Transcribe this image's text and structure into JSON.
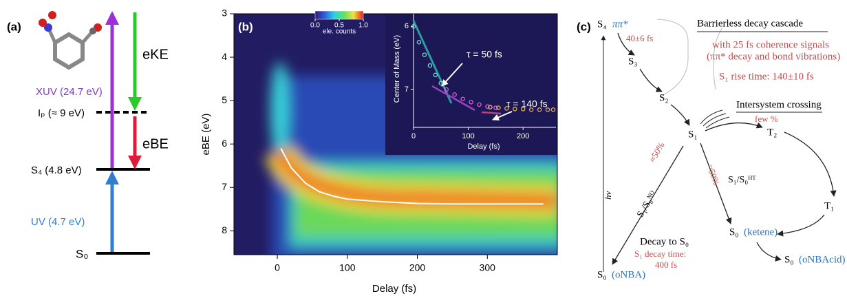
{
  "panel_a": {
    "label": "(a)",
    "s0": "S₀",
    "s4": "S₄ (4.8 eV)",
    "ip": "Iₚ (≈ 9 eV)",
    "xuv": "XUV (24.7 eV)",
    "uv": "UV (4.7 eV)",
    "eke": "eKE",
    "ebe": "eBE"
  },
  "chart_data": {
    "type": "heatmap",
    "panel_label": "(b)",
    "xlabel": "Delay (fs)",
    "ylabel": "eBE (eV)",
    "xlim": [
      -62,
      400
    ],
    "ylim": [
      8.55,
      3
    ],
    "xticks": [
      0,
      100,
      200,
      300
    ],
    "yticks": [
      3,
      4,
      5,
      6,
      7,
      8
    ],
    "mean_curve": {
      "color": "#ffffff",
      "x": [
        5,
        20,
        40,
        60,
        80,
        100,
        150,
        200,
        250,
        300,
        380
      ],
      "y": [
        6.1,
        6.55,
        6.9,
        7.1,
        7.2,
        7.27,
        7.33,
        7.37,
        7.38,
        7.38,
        7.38
      ]
    },
    "colorbar": {
      "label": "ele. counts",
      "lim": [
        0,
        1
      ],
      "ticks": [
        {
          "value": 0,
          "label": "0.0"
        },
        {
          "value": 0.5,
          "label": "0.5"
        },
        {
          "value": 1,
          "label": "1.0"
        }
      ]
    },
    "inset": {
      "type": "scatter",
      "xlabel": "Delay (fs)",
      "ylabel": "Center of Mass (eV)",
      "xlim": [
        0,
        260
      ],
      "ylim": [
        7.6,
        5.8
      ],
      "xticks": [
        0,
        100,
        200
      ],
      "yticks": [
        6,
        7
      ],
      "series": [
        {
          "color": "#7fd4d4",
          "x": [
            0,
            10,
            20,
            30,
            40,
            50
          ],
          "y": [
            6.0,
            6.25,
            6.45,
            6.62,
            6.77,
            6.9
          ]
        },
        {
          "color": "#e060e0",
          "x": [
            60,
            75,
            90,
            105,
            120,
            135,
            150
          ],
          "y": [
            7.0,
            7.08,
            7.15,
            7.2,
            7.24,
            7.27,
            7.29
          ]
        },
        {
          "color": "#e8b060",
          "x": [
            140,
            155,
            170,
            185,
            200,
            215,
            230,
            245,
            255
          ],
          "y": [
            7.28,
            7.29,
            7.3,
            7.31,
            7.31,
            7.32,
            7.32,
            7.32,
            7.32
          ]
        }
      ],
      "annotations": [
        "τ = 50 fs",
        "τ = 140 fs"
      ]
    }
  },
  "panel_c": {
    "label": "(c)",
    "s4": "S₄",
    "s4_state": "ππ*",
    "cascade_title": "Barrierless decay cascade",
    "coherence": "with 25 fs coherence signals",
    "coherence_detail": "(ππ* decay and bond vibrations)",
    "rise_time": "S₁ rise time: 140±10 fs",
    "s4_time": "40±6 fs",
    "s3": "S₃",
    "s2": "S₂",
    "s1": "S₁",
    "t2": "T₂",
    "t1": "T₁",
    "isc": "Intersystem crossing",
    "isc_yield": "few %",
    "hv": "hν",
    "branch_left": "≈50%",
    "branch_right": "≈50%",
    "ci_no": "S₁/S₀ᴺᴼ",
    "ci_ht": "S₁/S₀ᴴᵀ",
    "s0_ketene": "S₀",
    "ketene": "(ketene)",
    "s0_acid": "S₀",
    "acid": "(oNBAcid)",
    "s0_onba": "S₀",
    "onba": "(oNBA)",
    "decay_title": "Decay to S₀",
    "decay_time": "S₁ decay time:",
    "decay_value": "400 fs"
  }
}
